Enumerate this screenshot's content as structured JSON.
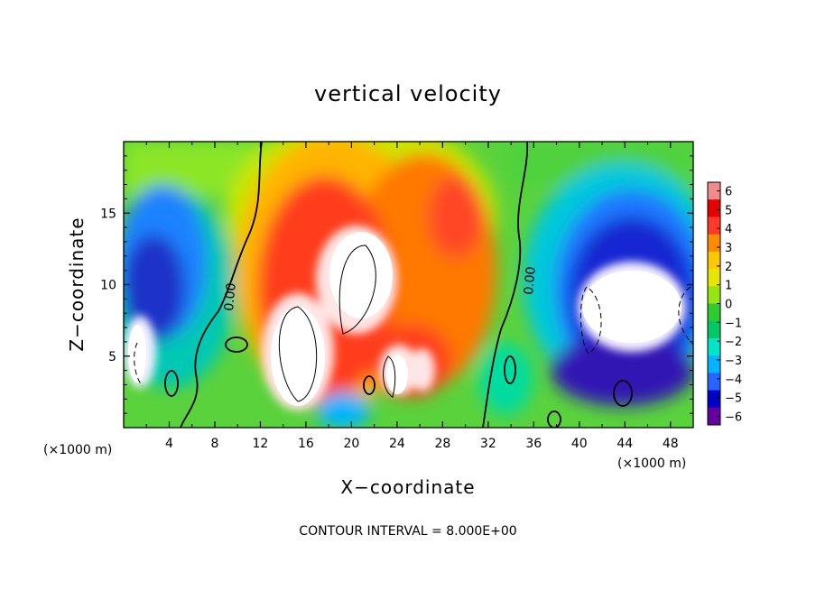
{
  "chart_data": {
    "type": "heatmap",
    "title": "vertical velocity",
    "xlabel": "X−coordinate",
    "ylabel": "Z−coordinate",
    "x_unit_left": "(×1000 m)",
    "x_unit_right": "(×1000 m)",
    "x_ticks": [
      4,
      8,
      12,
      16,
      20,
      24,
      28,
      32,
      36,
      40,
      44,
      48
    ],
    "y_ticks": [
      5,
      10,
      15
    ],
    "xlim": [
      0,
      50
    ],
    "ylim": [
      0,
      20
    ],
    "contour_label": "0.00",
    "contour_interval_text": "CONTOUR INTERVAL = 8.000E+00",
    "colorbar": {
      "ticks": [
        "6",
        "5",
        "4",
        "3",
        "2",
        "1",
        "0",
        "−1",
        "−2",
        "−3",
        "−4",
        "−5",
        "−6"
      ],
      "range": [
        -6,
        6
      ],
      "colors": [
        "#f28c8c",
        "#e60000",
        "#ff3a2a",
        "#ff8c00",
        "#ffc800",
        "#e6e600",
        "#96e614",
        "#2ecc2e",
        "#00c864",
        "#00e6c8",
        "#00b4ff",
        "#2864ff",
        "#0000c8",
        "#6400a0"
      ]
    },
    "features": [
      {
        "name": "updraft-core",
        "x": 19.5,
        "z": 9,
        "w": "> 6"
      },
      {
        "name": "updraft-secondary",
        "x": 24,
        "z": 4,
        "w": "> 6"
      },
      {
        "name": "downdraft-right",
        "x": 44,
        "z": 8,
        "w": "< -6"
      },
      {
        "name": "downdraft-left",
        "x": 1,
        "z": 6,
        "w": "< -6"
      }
    ]
  }
}
